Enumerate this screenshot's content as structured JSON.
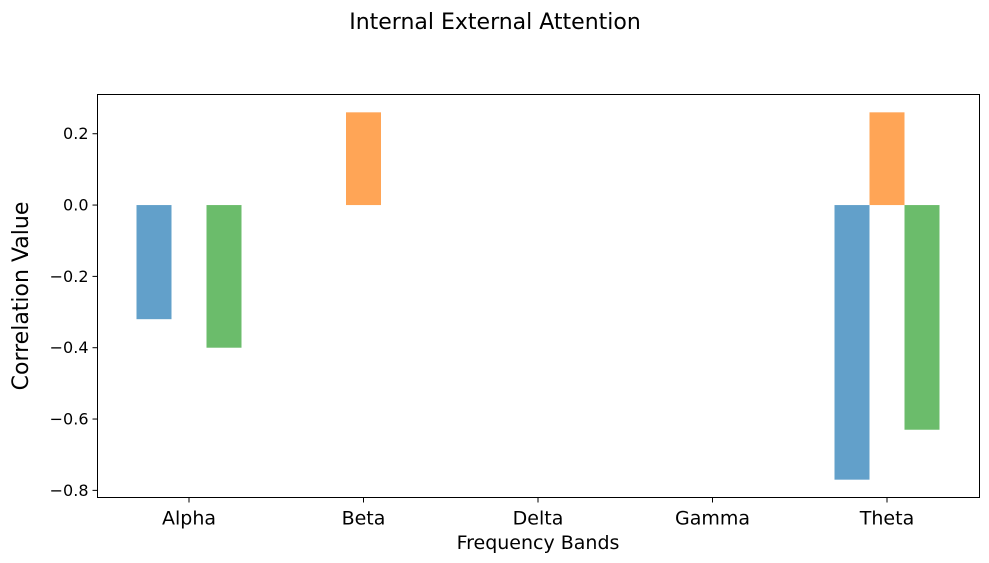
{
  "chart_data": {
    "type": "bar",
    "title": "Internal External Attention",
    "xlabel": "Frequency Bands",
    "ylabel": "Correlation Value",
    "categories": [
      "Alpha",
      "Beta",
      "Delta",
      "Gamma",
      "Theta"
    ],
    "ylim": [
      -0.82,
      0.31
    ],
    "yticks": [
      0.2,
      0.0,
      -0.2,
      -0.4,
      -0.6,
      -0.8
    ],
    "ytick_labels": [
      "0.2",
      "0.0",
      "−0.2",
      "−0.4",
      "−0.6",
      "−0.8"
    ],
    "grid": false,
    "series": [
      {
        "color": "#1f77b4",
        "values": [
          -0.32,
          null,
          null,
          null,
          -0.77
        ]
      },
      {
        "color": "#ff7f0e",
        "values": [
          null,
          0.26,
          null,
          null,
          0.26
        ]
      },
      {
        "color": "#2ca02c",
        "values": [
          -0.4,
          null,
          null,
          null,
          -0.63
        ]
      }
    ]
  }
}
